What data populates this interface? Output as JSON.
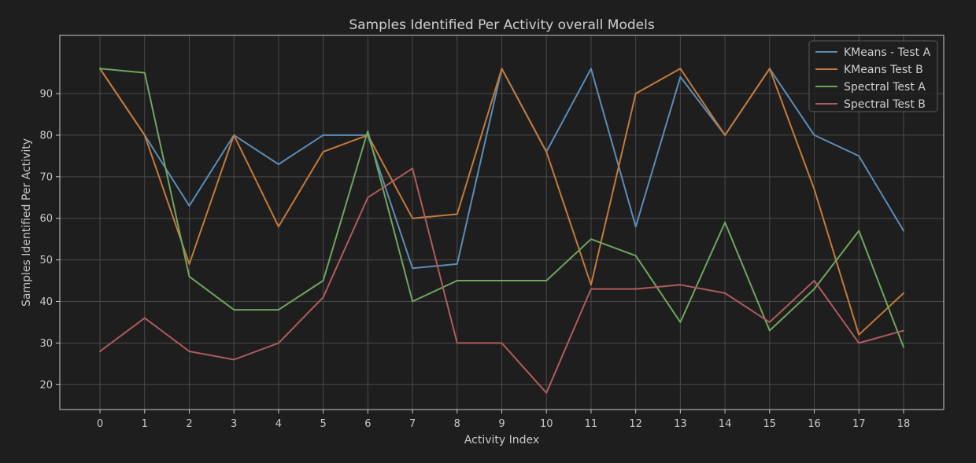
{
  "colors": {
    "background": "#1e1e1e",
    "plot_background": "#1e1e1e",
    "grid": "#4a4a4a",
    "axes": "#c8c8c8",
    "text": "#c8c8c8"
  },
  "chart_data": {
    "type": "line",
    "title": "Samples Identified Per Activity overall Models",
    "xlabel": "Activity Index",
    "ylabel": "Samples Identified Per Activity",
    "x": [
      0,
      1,
      2,
      3,
      4,
      5,
      6,
      7,
      8,
      9,
      10,
      11,
      12,
      13,
      14,
      15,
      16,
      17,
      18
    ],
    "xlim": [
      -0.9,
      18.9
    ],
    "ylim": [
      14,
      104
    ],
    "yticks": [
      20,
      30,
      40,
      50,
      60,
      70,
      80,
      90
    ],
    "grid": true,
    "legend_position": "top-right",
    "series": [
      {
        "name": "KMeans - Test A",
        "color": "#5b8db8",
        "values": [
          96,
          80,
          63,
          80,
          73,
          80,
          80,
          48,
          49,
          96,
          76,
          96,
          58,
          94,
          80,
          96,
          80,
          75,
          57
        ]
      },
      {
        "name": "KMeans Test B",
        "color": "#c47a3a",
        "values": [
          96,
          80,
          49,
          80,
          58,
          76,
          80,
          60,
          61,
          96,
          76,
          44,
          90,
          96,
          80,
          96,
          67,
          32,
          42
        ]
      },
      {
        "name": "Spectral Test A",
        "color": "#6ea65e",
        "values": [
          96,
          95,
          46,
          38,
          38,
          45,
          81,
          40,
          45,
          45,
          45,
          55,
          51,
          35,
          59,
          33,
          43,
          57,
          29
        ]
      },
      {
        "name": "Spectral Test B",
        "color": "#b05b5b",
        "values": [
          28,
          36,
          28,
          26,
          30,
          41,
          65,
          72,
          30,
          30,
          18,
          43,
          43,
          44,
          42,
          35,
          45,
          30,
          33
        ]
      }
    ]
  }
}
